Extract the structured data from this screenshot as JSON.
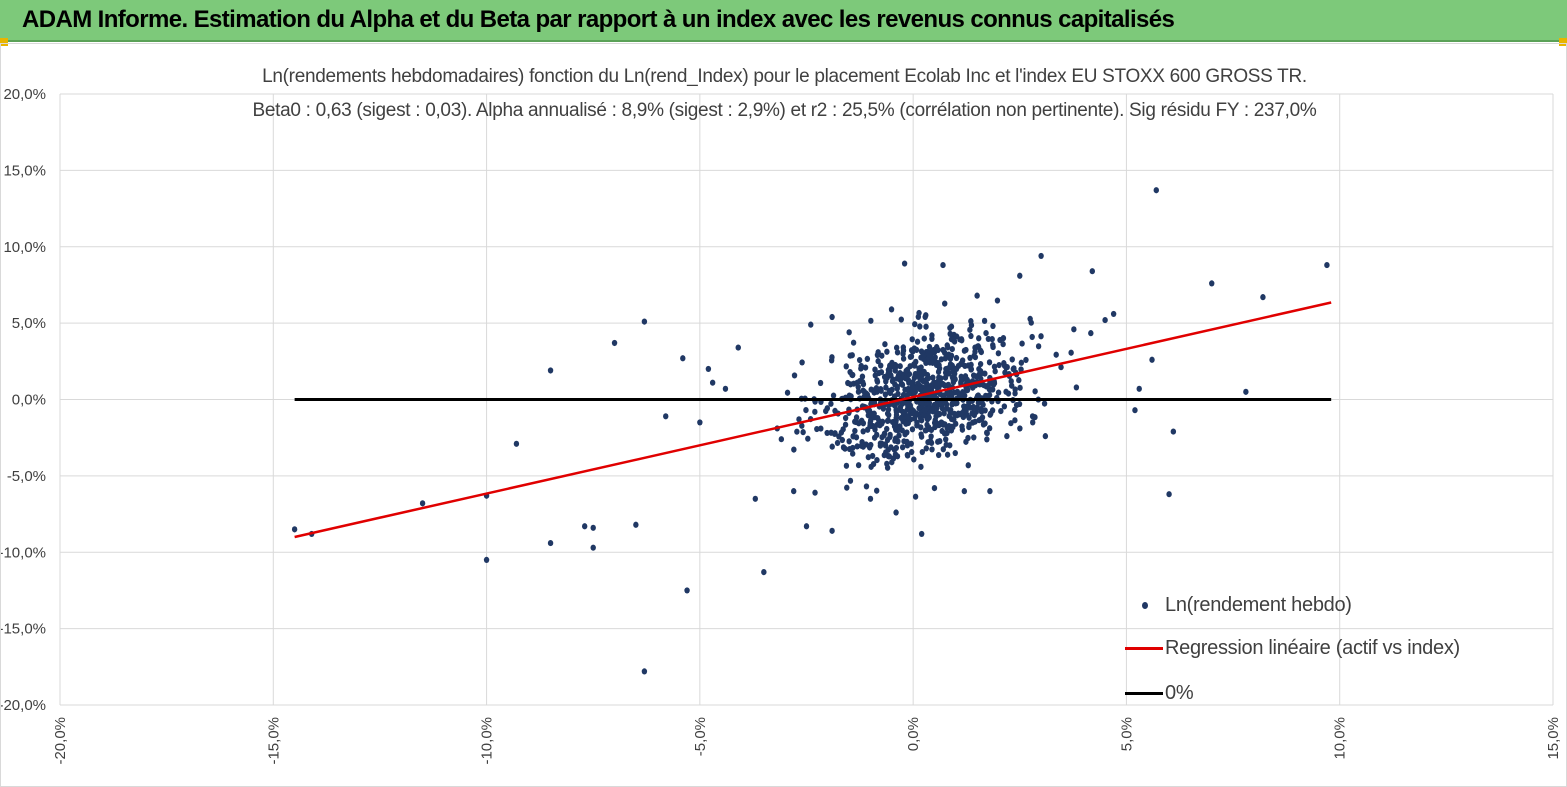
{
  "banner": {
    "title": "ADAM Informe. Estimation du Alpha et du Beta par rapport à un index avec les revenus connus capitalisés"
  },
  "colors": {
    "banner": "#7dc97a",
    "points": "#203864",
    "regression": "#e00000",
    "zero_line": "#000000",
    "grid": "#d9d9d9",
    "text": "#404040"
  },
  "chart_data": {
    "type": "scatter",
    "title": [
      "Ln(rendements hebdomadaires) fonction du Ln(rend_Index)  pour le placement Ecolab Inc et l'index EU STOXX 600 GROSS TR.",
      "Beta0 : 0,63 (sigest : 0,03).  Alpha annualisé : 8,9% (sigest : 2,9%) et r2 : 25,5% (corrélation non pertinente). Sig résidu FY : 237,0%"
    ],
    "xlim": [
      -20,
      15
    ],
    "ylim": [
      -20,
      20
    ],
    "x_ticks": [
      -20,
      -15,
      -10,
      -5,
      0,
      5,
      10,
      15
    ],
    "y_ticks": [
      20,
      15,
      10,
      5,
      0,
      -5,
      -10,
      -15,
      -20
    ],
    "x_tick_labels": [
      "-20,0%",
      "-15,0%",
      "-10,0%",
      "-5,0%",
      "0,0%",
      "5,0%",
      "10,0%",
      "15,0%"
    ],
    "y_tick_labels": [
      "20,0%",
      "15,0%",
      "10,0%",
      "5,0%",
      "0,0%",
      "-5,0%",
      "-10,0%",
      "-15,0%",
      "-20,0%"
    ],
    "grid": "vertical and horizontal major gridlines",
    "legend_position": "bottom-right",
    "series": [
      {
        "name": "Ln(rendement hebdo)",
        "type": "scatter",
        "outliers": [
          [
            -14.5,
            -8.5
          ],
          [
            -14.1,
            -8.8
          ],
          [
            -11.5,
            -6.8
          ],
          [
            -10.0,
            -6.3
          ],
          [
            -10.0,
            -10.5
          ],
          [
            -9.3,
            -2.9
          ],
          [
            -8.5,
            1.9
          ],
          [
            -8.5,
            -9.4
          ],
          [
            -7.7,
            -8.3
          ],
          [
            -7.5,
            -8.4
          ],
          [
            -7.5,
            -9.7
          ],
          [
            -7.0,
            3.7
          ],
          [
            -6.5,
            -8.2
          ],
          [
            -6.3,
            5.1
          ],
          [
            -6.3,
            -17.8
          ],
          [
            -5.8,
            -1.1
          ],
          [
            -5.4,
            2.7
          ],
          [
            -5.3,
            -12.5
          ],
          [
            -5.0,
            -1.5
          ],
          [
            -4.8,
            2.0
          ],
          [
            -4.7,
            1.1
          ],
          [
            -4.4,
            0.7
          ],
          [
            -4.1,
            3.4
          ],
          [
            -3.5,
            -11.3
          ],
          [
            -2.5,
            -8.3
          ],
          [
            -1.9,
            -8.6
          ],
          [
            -2.4,
            4.9
          ],
          [
            -1.9,
            5.4
          ],
          [
            -1.5,
            4.4
          ],
          [
            -0.2,
            8.9
          ],
          [
            0.2,
            -8.8
          ],
          [
            0.7,
            8.8
          ],
          [
            1.5,
            6.8
          ],
          [
            3.0,
            9.4
          ],
          [
            2.5,
            8.1
          ],
          [
            4.2,
            8.4
          ],
          [
            5.7,
            13.7
          ],
          [
            4.7,
            5.6
          ],
          [
            4.5,
            5.2
          ],
          [
            5.3,
            0.7
          ],
          [
            5.6,
            2.6
          ],
          [
            5.2,
            -0.7
          ],
          [
            6.1,
            -2.1
          ],
          [
            6.0,
            -6.2
          ],
          [
            7.0,
            7.6
          ],
          [
            7.8,
            0.5
          ],
          [
            8.2,
            6.7
          ],
          [
            9.7,
            8.8
          ],
          [
            3.1,
            -2.4
          ],
          [
            2.8,
            -1.1
          ],
          [
            1.8,
            -6.0
          ],
          [
            1.2,
            -6.0
          ],
          [
            0.5,
            -5.8
          ],
          [
            -0.4,
            -7.4
          ],
          [
            -2.8,
            -6.0
          ],
          [
            -2.3,
            -6.1
          ],
          [
            -1.0,
            -6.5
          ],
          [
            -3.7,
            -6.5
          ]
        ],
        "dense_cluster": {
          "description": "approx. 900 weekly observations",
          "x_mean": 0.3,
          "x_sd": 1.2,
          "beta": 0.63,
          "residual_sd": 2.0,
          "count": 900
        }
      },
      {
        "name": "Regression linéaire (actif vs index)",
        "type": "line",
        "x": [
          -14.5,
          9.8
        ],
        "y": [
          -9.0,
          6.35
        ]
      },
      {
        "name": "0%",
        "type": "line",
        "x": [
          -14.5,
          9.8
        ],
        "y": [
          0,
          0
        ]
      }
    ],
    "legend": [
      "Ln(rendement hebdo)",
      "Regression linéaire (actif vs index)",
      "0%"
    ]
  }
}
